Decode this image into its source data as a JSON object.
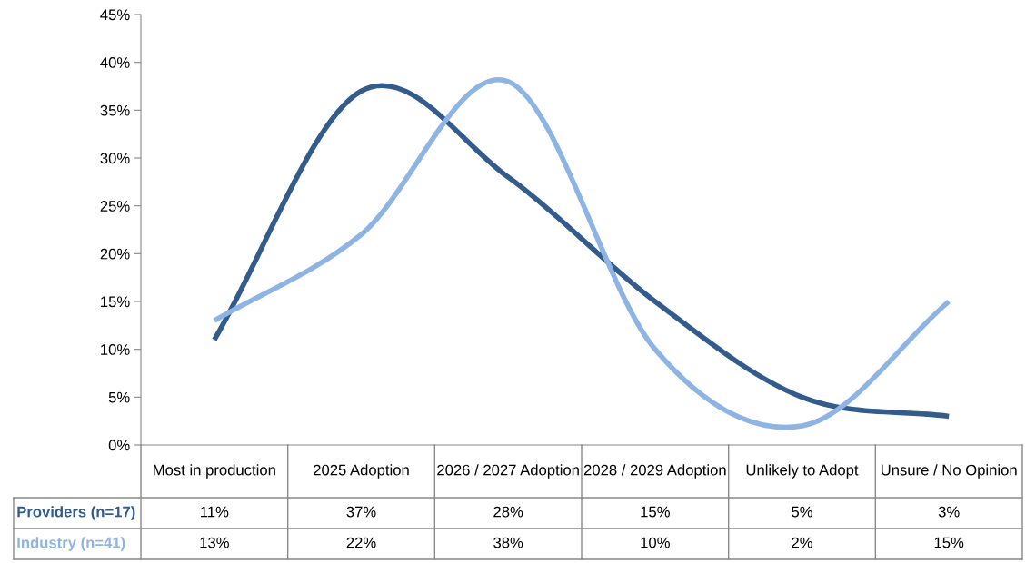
{
  "chart_data": {
    "type": "line",
    "categories": [
      "Most in production",
      "2025 Adoption",
      "2026 / 2027 Adoption",
      "2028 / 2029 Adoption",
      "Unlikely to Adopt",
      "Unsure / No Opinion"
    ],
    "series": [
      {
        "name": "Providers (n=17)",
        "color": "#335c8d",
        "values": [
          11,
          37,
          28,
          15,
          5,
          3
        ],
        "value_labels": [
          "11%",
          "37%",
          "28%",
          "15%",
          "5%",
          "3%"
        ]
      },
      {
        "name": "Industry (n=41)",
        "color": "#8eb4e3",
        "values": [
          13,
          22,
          38,
          10,
          2,
          15
        ],
        "value_labels": [
          "13%",
          "22%",
          "38%",
          "10%",
          "2%",
          "15%"
        ]
      }
    ],
    "ylim": [
      0,
      45
    ],
    "yticks": [
      {
        "value": 0,
        "label": "0%"
      },
      {
        "value": 5,
        "label": "5%"
      },
      {
        "value": 10,
        "label": "10%"
      },
      {
        "value": 15,
        "label": "15%"
      },
      {
        "value": 20,
        "label": "20%"
      },
      {
        "value": 25,
        "label": "25%"
      },
      {
        "value": 30,
        "label": "30%"
      },
      {
        "value": 35,
        "label": "35%"
      },
      {
        "value": 40,
        "label": "40%"
      },
      {
        "value": 45,
        "label": "45%"
      }
    ],
    "grid": false,
    "legend": false,
    "marker": "none",
    "line_style": "solid"
  }
}
